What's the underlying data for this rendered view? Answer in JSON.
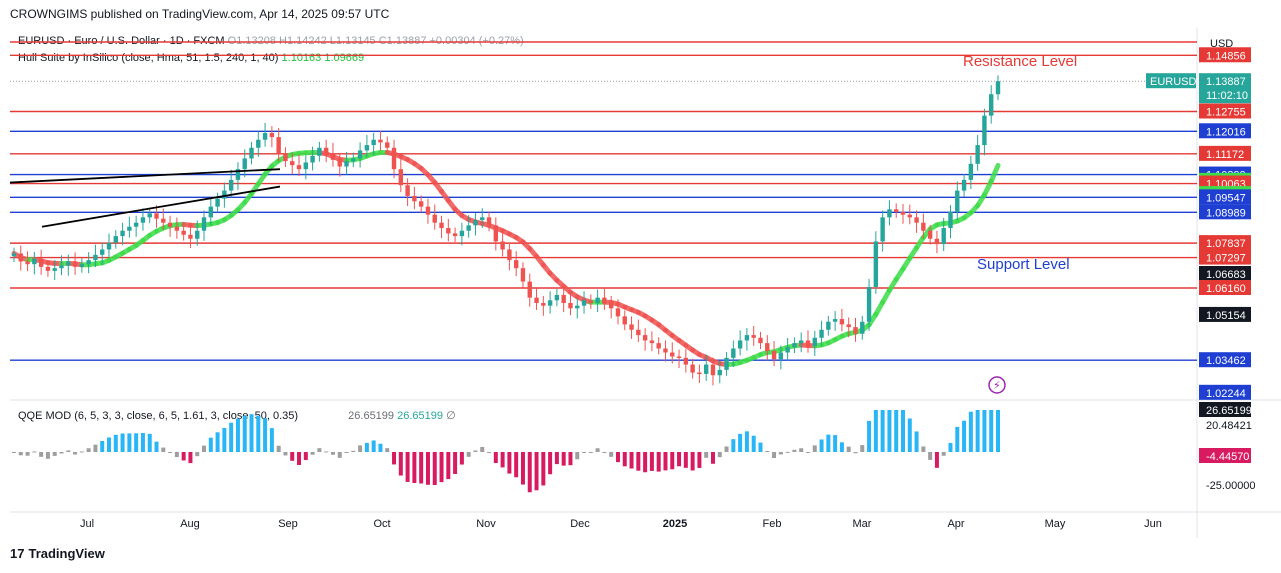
{
  "header": {
    "publish_line": "CROWNGIMS published on TradingView.com, Apr 14, 2025 09:57 UTC"
  },
  "legend": {
    "symbol": "EURUSD · Euro / U.S. Dollar · 1D · FXCM",
    "ohlc": "O1.13208 H1.14242 L1.13145 C1.13887 +0.00304 (+0.27%)",
    "hull_name": "Hull Suite by InSilico (close, Hma, 51, 1.5, 240, 1, 40)",
    "hull_val1": "1.10163",
    "hull_val2": "1.09669",
    "qqe_name": "QQE MOD (6, 5, 3, 3, close, 6, 5, 1.61, 3, close, 50, 0.35)",
    "qqe_val1": "26.65199",
    "qqe_val2": "26.65199",
    "qqe_empty": "∅"
  },
  "currency": "USD",
  "annotations": {
    "resistance": "Resistance Level",
    "support": "Support Level"
  },
  "branding": {
    "logo": "17",
    "name": "TradingView"
  },
  "colors": {
    "resistance_line": "#e53935",
    "support_line": "#1e3fd1",
    "candle_up": "#26a69a",
    "candle_down": "#ef5350",
    "hull_up": "#3ddc48",
    "hull_down": "#ef5350",
    "qqe_blue": "#29b6f6",
    "qqe_magenta": "#d81b60",
    "qqe_grey": "#9e9e9e"
  },
  "chart_data": {
    "type": "candlestick",
    "symbol": "EURUSD",
    "timeframe": "1D",
    "price_axis_ticks": [
      "1.14856",
      "1.12755",
      "1.12016",
      "1.11172",
      "1.10399",
      "1.10163",
      "1.10063",
      "1.09669",
      "1.09547",
      "1.08989",
      "1.07837",
      "1.07297",
      "1.06683",
      "1.06160",
      "1.05154",
      "1.03462",
      "1.02244"
    ],
    "current_price": {
      "label": "EURUSD",
      "value": "1.13887",
      "countdown": "11:02:10"
    },
    "hull_values": {
      "hull": "1.10163",
      "hull_shifted": "1.09669"
    },
    "resistance_levels": [
      1.14856,
      1.12755,
      1.11172,
      1.10063,
      1.07837,
      1.07297,
      1.0616
    ],
    "support_levels": [
      1.12016,
      1.10399,
      1.09547,
      1.08989,
      1.03462
    ],
    "x_tick_labels": [
      "Jul",
      "Aug",
      "Sep",
      "Oct",
      "Nov",
      "Dec",
      "2025",
      "Feb",
      "Mar",
      "Apr",
      "May",
      "Jun"
    ],
    "ylim": [
      1.0205,
      1.158
    ],
    "closes": [
      1.0745,
      1.0715,
      1.0705,
      1.0725,
      1.0695,
      1.068,
      1.069,
      1.07,
      1.0715,
      1.0695,
      1.0705,
      1.072,
      1.074,
      1.076,
      1.0785,
      1.081,
      1.083,
      1.0845,
      1.086,
      1.088,
      1.0895,
      1.0875,
      1.086,
      1.0845,
      1.083,
      1.0815,
      1.08,
      1.083,
      1.088,
      1.092,
      1.095,
      1.098,
      1.102,
      1.106,
      1.11,
      1.114,
      1.117,
      1.1195,
      1.118,
      1.112,
      1.109,
      1.1075,
      1.106,
      1.1085,
      1.111,
      1.114,
      1.112,
      1.1095,
      1.107,
      1.109,
      1.11,
      1.113,
      1.115,
      1.117,
      1.116,
      1.114,
      1.106,
      1.1,
      1.096,
      1.094,
      1.092,
      1.089,
      1.086,
      1.084,
      1.082,
      1.081,
      1.083,
      1.085,
      1.087,
      1.088,
      1.085,
      1.079,
      1.076,
      1.072,
      1.069,
      1.064,
      1.058,
      1.056,
      1.055,
      1.057,
      1.059,
      1.056,
      1.054,
      1.055,
      1.057,
      1.056,
      1.058,
      1.056,
      1.054,
      1.051,
      1.048,
      1.046,
      1.044,
      1.042,
      1.041,
      1.039,
      1.0375,
      1.036,
      1.0355,
      1.033,
      1.03,
      1.0295,
      1.033,
      1.029,
      1.031,
      1.0355,
      1.039,
      1.042,
      1.044,
      1.043,
      1.041,
      1.038,
      1.035,
      1.0375,
      1.0395,
      1.041,
      1.042,
      1.04,
      1.043,
      1.046,
      1.049,
      1.05,
      1.048,
      1.047,
      1.0445,
      1.049,
      1.062,
      1.079,
      1.088,
      1.091,
      1.09,
      1.089,
      1.088,
      1.086,
      1.083,
      1.08,
      1.078,
      1.084,
      1.09,
      1.098,
      1.102,
      1.108,
      1.115,
      1.126,
      1.134,
      1.13887
    ]
  }
}
